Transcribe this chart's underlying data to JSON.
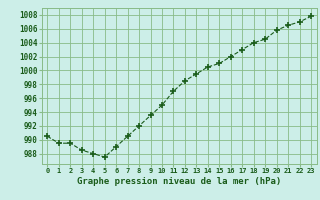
{
  "x": [
    0,
    1,
    2,
    3,
    4,
    5,
    6,
    7,
    8,
    9,
    10,
    11,
    12,
    13,
    14,
    15,
    16,
    17,
    18,
    19,
    20,
    21,
    22,
    23
  ],
  "y": [
    990.5,
    989.5,
    989.5,
    988.5,
    988.0,
    987.5,
    989.0,
    990.5,
    992.0,
    993.5,
    995.0,
    997.0,
    998.5,
    999.5,
    1000.5,
    1001.0,
    1002.0,
    1003.0,
    1004.0,
    1004.5,
    1005.8,
    1006.5,
    1007.0,
    1007.8
  ],
  "bg_color": "#cceee8",
  "grid_color": "#88bb88",
  "line_color": "#1a5c1a",
  "marker_color": "#1a5c1a",
  "xlabel": "Graphe pression niveau de la mer (hPa)",
  "ylabel_ticks": [
    988,
    990,
    992,
    994,
    996,
    998,
    1000,
    1002,
    1004,
    1006,
    1008
  ],
  "ylim": [
    986.5,
    1009.0
  ],
  "xlim": [
    -0.5,
    23.5
  ],
  "xtick_labels": [
    "0",
    "1",
    "2",
    "3",
    "4",
    "5",
    "6",
    "7",
    "8",
    "9",
    "10",
    "11",
    "12",
    "13",
    "14",
    "15",
    "16",
    "17",
    "18",
    "19",
    "20",
    "21",
    "22",
    "23"
  ]
}
